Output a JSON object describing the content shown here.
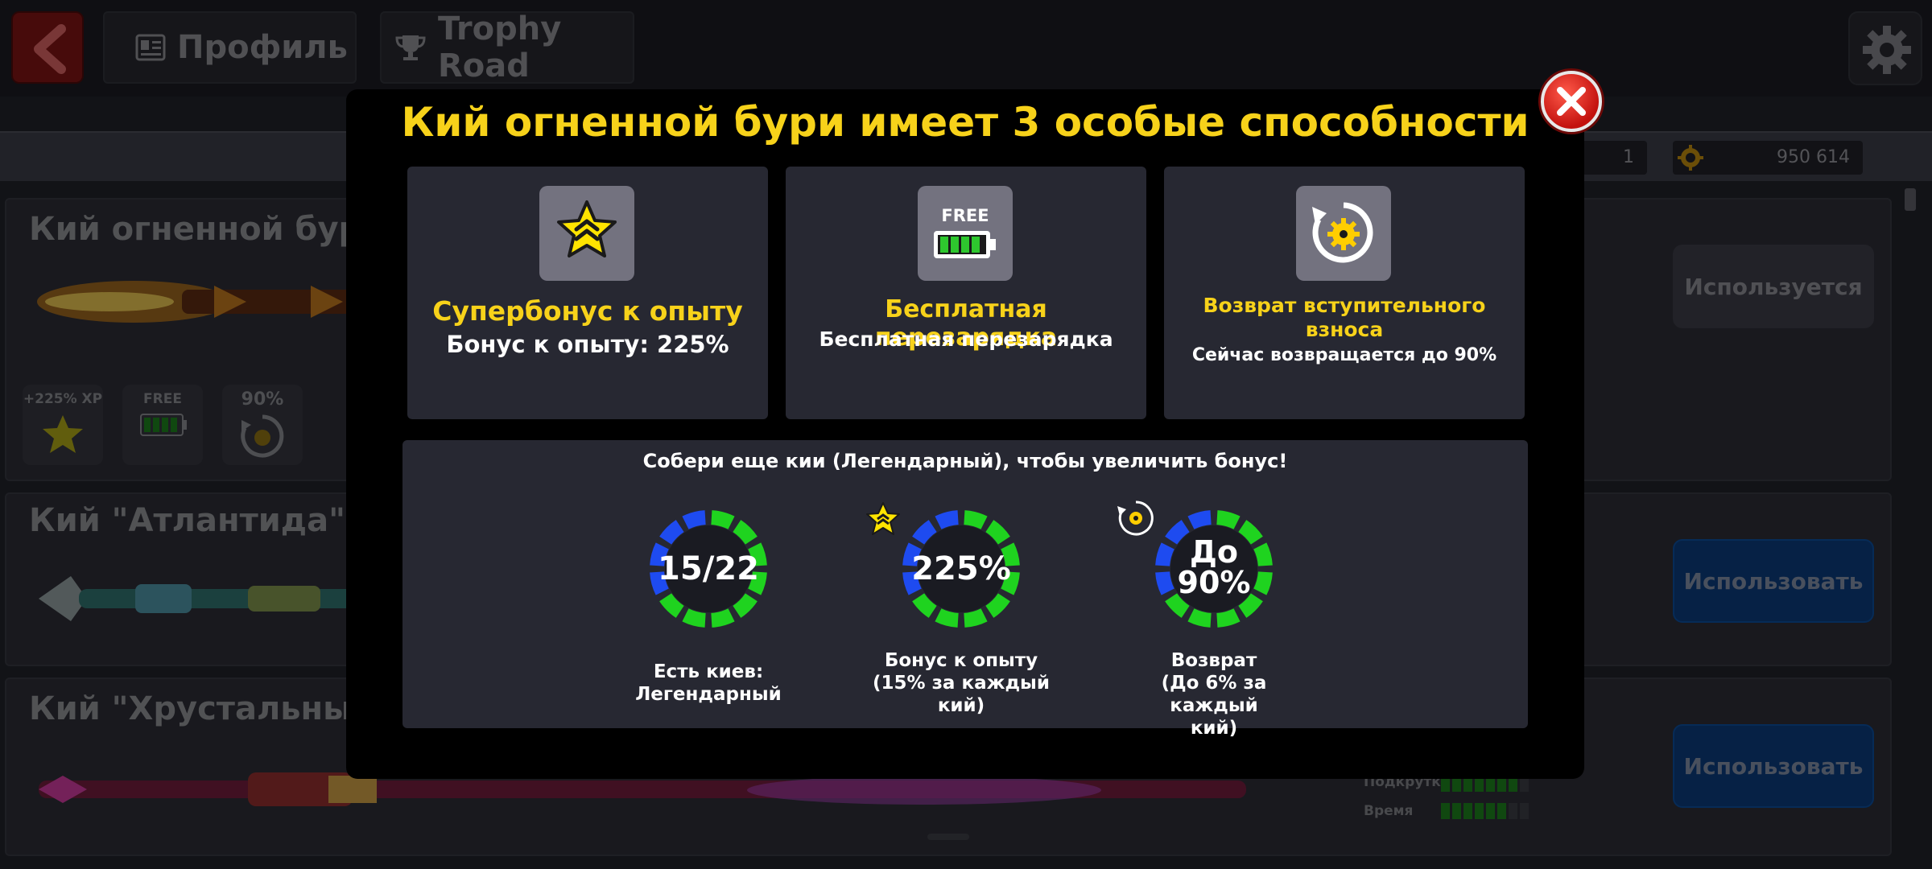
{
  "header": {
    "tab_profile": "Профиль",
    "tab_trophy": "Trophy Road"
  },
  "balance": {
    "count": "1",
    "coins": "950 614"
  },
  "cues": [
    {
      "name": "Кий огненной бури",
      "abilities": {
        "xp": "+225% XP",
        "recharge": "FREE",
        "refund": "90%"
      },
      "state": "Используется"
    },
    {
      "name": "Кий \"Атлантида\"",
      "state": "Использовать"
    },
    {
      "name": "Кий \"Хрустальный к",
      "state": "Использовать",
      "stats": [
        {
          "label": "Подкрутка",
          "filled": 7,
          "total": 8
        },
        {
          "label": "Время",
          "filled": 6,
          "total": 8
        }
      ]
    }
  ],
  "modal": {
    "title": "Кий огненной бури имеет 3 особые способности",
    "features": [
      {
        "icon": "star-chevron-icon",
        "title": "Супербонус к опыту",
        "desc": "Бонус к опыту: 225%"
      },
      {
        "icon": "free-battery-icon",
        "icon_text": "FREE",
        "title": "Бесплатная перезарядка",
        "desc": "Бесплатная перезарядка"
      },
      {
        "icon": "refund-coin-icon",
        "title": "Возврат вступительного взноса",
        "desc": "Сейчас возвращается до 90%"
      }
    ],
    "bonus": {
      "heading": "Собери еще кии (Легендарный), чтобы увеличить бонус!",
      "rings": [
        {
          "value": "15/22",
          "caption": [
            "Есть киев:",
            "Легендарный"
          ],
          "progress": 0.68
        },
        {
          "value": "225%",
          "caption": [
            "Бонус к опыту",
            "(15% за каждый",
            "кий)"
          ],
          "progress": 0.68
        },
        {
          "value_line1": "До",
          "value_line2": "90%",
          "caption": [
            "Возврат",
            "(До 6% за каждый",
            "кий)"
          ],
          "progress": 0.68
        }
      ]
    }
  },
  "colors": {
    "accent_yellow": "#f7d21a",
    "ring_green": "#1fd31f",
    "ring_blue": "#1e4bf0",
    "use_button": "#0b3a78",
    "close_red": "#d8150f"
  }
}
